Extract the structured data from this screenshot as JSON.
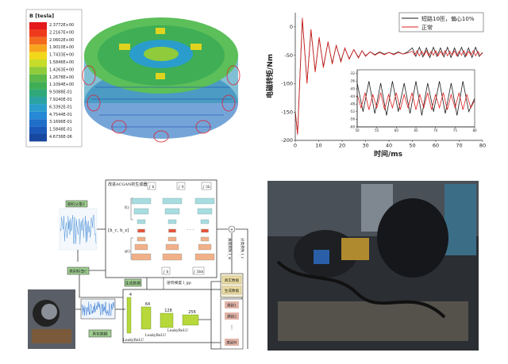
{
  "simulation": {
    "legend_title": "B [tesla]",
    "legend_values": [
      "2.3772E+00",
      "2.2167E+00",
      "2.0602E+00",
      "1.9010E+00",
      "1.7433E+00",
      "1.5846E+00",
      "1.4263E+00",
      "1.2678E+00",
      "1.1094E+00",
      "9.5088E-01",
      "7.9240E-01",
      "6.3392E-01",
      "4.7544E-01",
      "3.1696E-01",
      "1.5848E-01",
      "4.6736E-06"
    ],
    "legend_colors": [
      "#e41a1c",
      "#ee3a1a",
      "#f36b1e",
      "#f7a51d",
      "#f2d81a",
      "#c6dc2a",
      "#8fcb3a",
      "#5cb848",
      "#3fae55",
      "#30a97a",
      "#2ba3a2",
      "#2a9dcc",
      "#2589d6",
      "#1f6fc8",
      "#1b58b8",
      "#17479f"
    ]
  },
  "chart_data": {
    "type": "line",
    "xlabel": "时间/ms",
    "ylabel": "电磁转矩/Nm",
    "xlim": [
      0,
      80
    ],
    "ylim": [
      -200,
      25
    ],
    "xticks": [
      "0",
      "10",
      "20",
      "30",
      "40",
      "50",
      "60",
      "70",
      "80"
    ],
    "yticks": [
      "0",
      "-50",
      "-100",
      "-150",
      "-200"
    ],
    "legend_position": "top-right",
    "series": [
      {
        "name": "短路10匝，偏心10%",
        "color": "#1a1a1a",
        "x": [
          0,
          1,
          3,
          5,
          6.7,
          8.5,
          10.2,
          12,
          14,
          15.8,
          17.5,
          19.5,
          21.2,
          23,
          25,
          27,
          28.5,
          30,
          32,
          34,
          36,
          38,
          40,
          42,
          44,
          46,
          48,
          50,
          51.5,
          53,
          54.5,
          56,
          57.5,
          59,
          60.5,
          62,
          63.5,
          65,
          66.5,
          68,
          69.5,
          71,
          72.5,
          74,
          75.5,
          77,
          78.5,
          80
        ],
        "y": [
          -150,
          -188,
          14,
          -98,
          -6,
          -78,
          -20,
          -70,
          -27,
          -64,
          -33,
          -60,
          -38,
          -56,
          -40,
          -54,
          -42,
          -51,
          -44,
          -49,
          -44,
          -48,
          -45,
          -48,
          -44,
          -48,
          -44,
          -37,
          -52,
          -36,
          -53,
          -37,
          -54,
          -36,
          -52,
          -37,
          -53,
          -36,
          -54,
          -37,
          -52,
          -36,
          -53,
          -37,
          -54,
          -36,
          -52,
          -45
        ]
      },
      {
        "name": "正常",
        "color": "#e02020",
        "x": [
          0,
          1,
          3,
          5,
          6.7,
          8.5,
          10.2,
          12,
          14,
          15.8,
          17.5,
          19.5,
          21.2,
          23,
          25,
          27,
          28.5,
          30,
          32,
          34,
          36,
          38,
          40,
          42,
          44,
          46,
          48,
          50,
          51,
          52,
          53,
          54,
          55,
          56,
          57,
          58,
          59,
          60,
          61,
          62,
          63,
          64,
          65,
          66,
          67,
          68,
          69,
          70,
          71,
          72,
          73,
          74,
          75,
          76,
          77,
          78,
          79,
          80
        ],
        "y": [
          -150,
          -190,
          16,
          -100,
          -4,
          -80,
          -18,
          -72,
          -26,
          -66,
          -32,
          -62,
          -37,
          -57,
          -40,
          -55,
          -42,
          -52,
          -44,
          -50,
          -45,
          -49,
          -45,
          -49,
          -45,
          -48,
          -46,
          -43,
          -50,
          -42,
          -51,
          -43,
          -50,
          -42,
          -51,
          -43,
          -50,
          -42,
          -51,
          -43,
          -50,
          -42,
          -51,
          -43,
          -50,
          -42,
          -51,
          -43,
          -50,
          -42,
          -51,
          -43,
          -50,
          -42,
          -51,
          -43,
          -50,
          -46
        ]
      }
    ],
    "inset": {
      "xlim": [
        50,
        80
      ],
      "ylim": [
        -60,
        -30
      ],
      "xticks": [
        "50",
        "55",
        "60",
        "65",
        "70",
        "75",
        "80"
      ],
      "yticks": [
        "-32",
        "-36",
        "-40",
        "-44",
        "-48",
        "-52",
        "-56",
        "-60"
      ]
    }
  },
  "diagram": {
    "generator_title": "改进ACGAN的生成器",
    "noise_label": "随机分量Z",
    "class_label": "类别标签C",
    "generated_data_label": "生成数据",
    "real_data_label": "真实数据",
    "discriminator_title": "判别器",
    "hidden_label": "[h_c, h_z]",
    "f_label": "f()",
    "g_label": "g()",
    "ellipsis": "· · ·",
    "top_integrals": [
      "∫ b",
      "∫ 4",
      "∫ 3b"
    ],
    "bottom_integrals": [
      "∫ b",
      "∫ 3bb"
    ],
    "gp_loss": "惩罚梯度 l_gp",
    "adv_loss": "真假损失 l_w",
    "cls_loss": "分类损失 l_c",
    "sum_symbol": "+",
    "layer_sizes": [
      "4",
      "64",
      "128",
      "256"
    ],
    "activations": [
      "LeakyReLU",
      "LeakyReLU",
      "LeakyReLU"
    ],
    "output_real_fake": [
      "真实数据",
      "生成数据"
    ],
    "output_classes": [
      "类别1",
      "类别2",
      "⋮",
      "类别N"
    ]
  }
}
